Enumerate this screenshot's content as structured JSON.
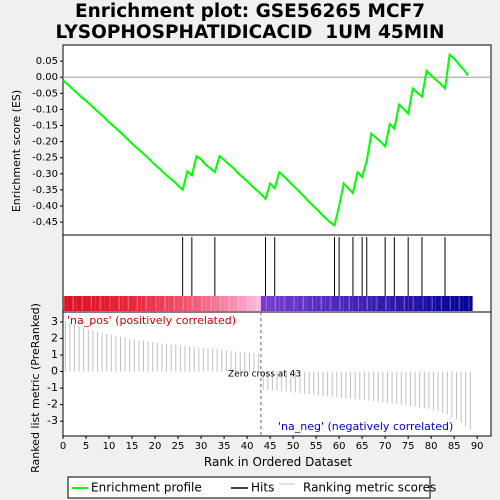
{
  "title_lines": [
    "Enrichment plot: GSE56265 MCF7",
    "LYSOPHOSPHATIDICACID  1UM 45MIN"
  ],
  "chart_data": {
    "type": "line",
    "title": "Enrichment plot: GSE56265 MCF7 LYSOPHOSPHATIDICACID  1UM 45MIN",
    "xlabel": "Rank in Ordered Dataset",
    "xlim": [
      0,
      93
    ],
    "x_ticks": [
      0,
      5,
      10,
      15,
      20,
      25,
      30,
      35,
      40,
      45,
      50,
      55,
      60,
      65,
      70,
      75,
      80,
      85,
      90
    ],
    "es_panel": {
      "ylabel": "Enrichment score (ES)",
      "ylim": [
        -0.49,
        0.1
      ],
      "y_ticks": [
        -0.45,
        -0.4,
        -0.35,
        -0.3,
        -0.25,
        -0.2,
        -0.15,
        -0.1,
        -0.05,
        0.0,
        0.05
      ],
      "y_tick_labels": [
        "-0.45",
        "-0.40",
        "-0.35",
        "-0.30",
        "-0.25",
        "-0.20",
        "-0.15",
        "-0.10",
        "-0.05",
        "0.00",
        "0.05"
      ],
      "series_color": "#00ff00",
      "x": [
        0,
        1,
        2,
        3,
        4,
        5,
        6,
        7,
        8,
        9,
        10,
        11,
        12,
        13,
        14,
        15,
        16,
        17,
        18,
        19,
        20,
        21,
        22,
        23,
        24,
        25,
        26,
        27,
        28,
        29,
        30,
        31,
        32,
        33,
        34,
        35,
        36,
        37,
        38,
        39,
        40,
        41,
        42,
        43,
        44,
        45,
        46,
        47,
        48,
        49,
        50,
        51,
        52,
        53,
        54,
        55,
        56,
        57,
        58,
        59,
        60,
        61,
        62,
        63,
        64,
        65,
        66,
        67,
        68,
        69,
        70,
        71,
        72,
        73,
        74,
        75,
        76,
        77,
        78,
        79,
        80,
        81,
        82,
        83,
        84,
        85,
        86,
        87,
        88
      ],
      "es": [
        -0.01,
        -0.022,
        -0.035,
        -0.048,
        -0.062,
        -0.073,
        -0.086,
        -0.1,
        -0.112,
        -0.125,
        -0.14,
        -0.152,
        -0.165,
        -0.178,
        -0.192,
        -0.206,
        -0.219,
        -0.231,
        -0.244,
        -0.258,
        -0.272,
        -0.284,
        -0.298,
        -0.311,
        -0.322,
        -0.337,
        -0.35,
        -0.292,
        -0.305,
        -0.245,
        -0.255,
        -0.272,
        -0.283,
        -0.295,
        -0.245,
        -0.257,
        -0.27,
        -0.282,
        -0.298,
        -0.31,
        -0.323,
        -0.337,
        -0.35,
        -0.362,
        -0.378,
        -0.33,
        -0.345,
        -0.295,
        -0.308,
        -0.322,
        -0.337,
        -0.35,
        -0.365,
        -0.38,
        -0.395,
        -0.408,
        -0.423,
        -0.437,
        -0.45,
        -0.46,
        -0.4,
        -0.33,
        -0.345,
        -0.36,
        -0.295,
        -0.31,
        -0.26,
        -0.175,
        -0.188,
        -0.2,
        -0.215,
        -0.145,
        -0.16,
        -0.085,
        -0.098,
        -0.113,
        -0.035,
        -0.048,
        -0.06,
        0.02,
        0.005,
        -0.008,
        -0.02,
        -0.035,
        0.07,
        0.058,
        0.04,
        0.025,
        0.005
      ]
    },
    "hits": {
      "label": "Hits",
      "positions": [
        26,
        28,
        33,
        44,
        46,
        59,
        60,
        63,
        65,
        66,
        70,
        72,
        75,
        78,
        83
      ]
    },
    "ranking_panel": {
      "ylabel": "Ranked list metric (PreRanked)",
      "ylim": [
        -3.9,
        3.6
      ],
      "y_ticks": [
        -3,
        -2,
        -1,
        0,
        1,
        2,
        3
      ],
      "pos_label": "'na_pos' (positively correlated)",
      "neg_label": "'na_neg' (negatively correlated)",
      "zero_cross_label": "Zero cross at 43",
      "zero_cross_rank": 43,
      "bar_start": 0.5,
      "bar_step": 1.0,
      "values": [
        3.05,
        2.95,
        2.85,
        2.75,
        2.65,
        2.55,
        2.47,
        2.4,
        2.33,
        2.27,
        2.21,
        2.16,
        2.1,
        2.05,
        2.0,
        1.95,
        1.9,
        1.86,
        1.82,
        1.78,
        1.74,
        1.7,
        1.67,
        1.64,
        1.61,
        1.58,
        1.55,
        1.52,
        1.49,
        1.46,
        1.43,
        1.4,
        1.37,
        1.34,
        1.31,
        1.28,
        1.25,
        1.22,
        1.2,
        1.17,
        1.15,
        1.12,
        1.1,
        -1.1,
        -1.12,
        -1.14,
        -1.17,
        -1.2,
        -1.22,
        -1.25,
        -1.28,
        -1.31,
        -1.34,
        -1.37,
        -1.4,
        -1.43,
        -1.46,
        -1.49,
        -1.52,
        -1.55,
        -1.58,
        -1.61,
        -1.64,
        -1.67,
        -1.7,
        -1.73,
        -1.76,
        -1.8,
        -1.83,
        -1.86,
        -1.9,
        -1.93,
        -1.96,
        -2.0,
        -2.04,
        -2.08,
        -2.12,
        -2.17,
        -2.22,
        -2.28,
        -2.34,
        -2.41,
        -2.5,
        -2.6,
        -2.75,
        -2.9,
        -3.1,
        -3.3,
        -3.5
      ]
    },
    "legend": {
      "placement": "bottom",
      "entries": [
        "Enrichment profile",
        "Hits",
        "Ranking metric scores"
      ],
      "colors": [
        "#00ff00",
        "#000000",
        "#c0c0c0"
      ]
    },
    "colors": {
      "pos_label": "#cc0000",
      "neg_label": "#0000cc"
    }
  }
}
